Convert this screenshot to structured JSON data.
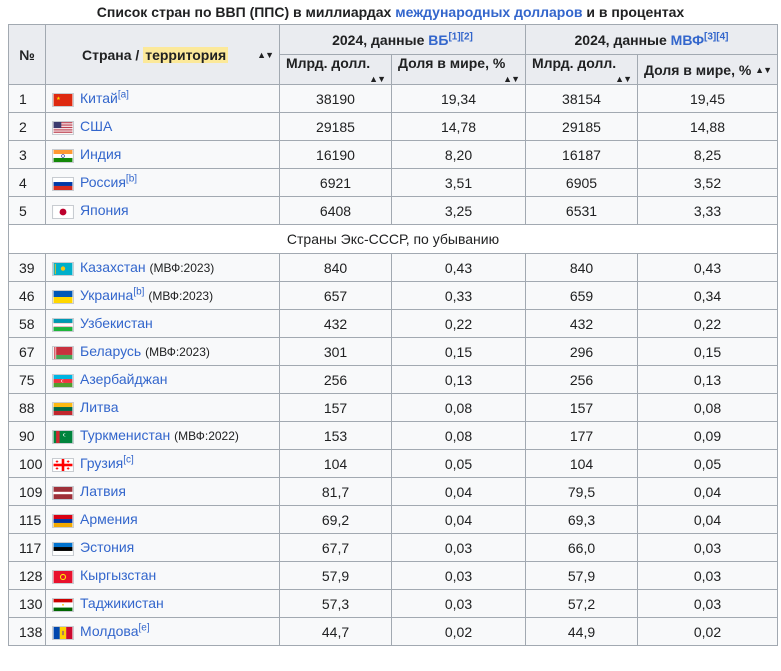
{
  "caption": {
    "part1": "Список стран по ВВП (ППС) в миллиардах ",
    "link": "международных долларов",
    "part2": " и в процентах"
  },
  "headers": {
    "rank": "№",
    "country_prefix": "Страна / ",
    "country_highlight": "территория",
    "wb_prefix": "2024, данные ",
    "wb_link": "ВБ",
    "wb_refs": "[1][2]",
    "imf_prefix": "2024, данные ",
    "imf_link": "МВФ",
    "imf_refs": "[3][4]",
    "gdp": "Млрд. долл.",
    "share": "Доля в мире, %",
    "sort_glyph": "▲▼"
  },
  "separator": "Страны Экс-СССР, по убыванию",
  "top_rows": [
    {
      "rank": "1",
      "flag": "china-flag-icon",
      "name": "Китай",
      "sup": "[a]",
      "note": "",
      "wb_gdp": "38190",
      "wb_share": "19,34",
      "imf_gdp": "38154",
      "imf_share": "19,45"
    },
    {
      "rank": "2",
      "flag": "usa-flag-icon",
      "name": "США",
      "sup": "",
      "note": "",
      "wb_gdp": "29185",
      "wb_share": "14,78",
      "imf_gdp": "29185",
      "imf_share": "14,88"
    },
    {
      "rank": "3",
      "flag": "india-flag-icon",
      "name": "Индия",
      "sup": "",
      "note": "",
      "wb_gdp": "16190",
      "wb_share": "8,20",
      "imf_gdp": "16187",
      "imf_share": "8,25"
    },
    {
      "rank": "4",
      "flag": "russia-flag-icon",
      "name": "Россия",
      "sup": "[b]",
      "note": "",
      "wb_gdp": "6921",
      "wb_share": "3,51",
      "imf_gdp": "6905",
      "imf_share": "3,52"
    },
    {
      "rank": "5",
      "flag": "japan-flag-icon",
      "name": "Япония",
      "sup": "",
      "note": "",
      "wb_gdp": "6408",
      "wb_share": "3,25",
      "imf_gdp": "6531",
      "imf_share": "3,33"
    }
  ],
  "ussr_rows": [
    {
      "rank": "39",
      "flag": "kazakhstan-flag-icon",
      "name": "Казахстан",
      "sup": "",
      "note": "(МВФ:2023)",
      "wb_gdp": "840",
      "wb_share": "0,43",
      "imf_gdp": "840",
      "imf_share": "0,43"
    },
    {
      "rank": "46",
      "flag": "ukraine-flag-icon",
      "name": "Украина",
      "sup": "[b]",
      "note": "(МВФ:2023)",
      "wb_gdp": "657",
      "wb_share": "0,33",
      "imf_gdp": "659",
      "imf_share": "0,34"
    },
    {
      "rank": "58",
      "flag": "uzbekistan-flag-icon",
      "name": "Узбекистан",
      "sup": "",
      "note": "",
      "wb_gdp": "432",
      "wb_share": "0,22",
      "imf_gdp": "432",
      "imf_share": "0,22"
    },
    {
      "rank": "67",
      "flag": "belarus-flag-icon",
      "name": "Беларусь",
      "sup": "",
      "note": "(МВФ:2023)",
      "wb_gdp": "301",
      "wb_share": "0,15",
      "imf_gdp": "296",
      "imf_share": "0,15"
    },
    {
      "rank": "75",
      "flag": "azerbaijan-flag-icon",
      "name": "Азербайджан",
      "sup": "",
      "note": "",
      "wb_gdp": "256",
      "wb_share": "0,13",
      "imf_gdp": "256",
      "imf_share": "0,13"
    },
    {
      "rank": "88",
      "flag": "lithuania-flag-icon",
      "name": "Литва",
      "sup": "",
      "note": "",
      "wb_gdp": "157",
      "wb_share": "0,08",
      "imf_gdp": "157",
      "imf_share": "0,08"
    },
    {
      "rank": "90",
      "flag": "turkmenistan-flag-icon",
      "name": "Туркменистан",
      "sup": "",
      "note": "(МВФ:2022)",
      "wb_gdp": "153",
      "wb_share": "0,08",
      "imf_gdp": "177",
      "imf_share": "0,09"
    },
    {
      "rank": "100",
      "flag": "georgia-flag-icon",
      "name": "Грузия",
      "sup": "[c]",
      "note": "",
      "wb_gdp": "104",
      "wb_share": "0,05",
      "imf_gdp": "104",
      "imf_share": "0,05"
    },
    {
      "rank": "109",
      "flag": "latvia-flag-icon",
      "name": "Латвия",
      "sup": "",
      "note": "",
      "wb_gdp": "81,7",
      "wb_share": "0,04",
      "imf_gdp": "79,5",
      "imf_share": "0,04"
    },
    {
      "rank": "115",
      "flag": "armenia-flag-icon",
      "name": "Армения",
      "sup": "",
      "note": "",
      "wb_gdp": "69,2",
      "wb_share": "0,04",
      "imf_gdp": "69,3",
      "imf_share": "0,04"
    },
    {
      "rank": "117",
      "flag": "estonia-flag-icon",
      "name": "Эстония",
      "sup": "",
      "note": "",
      "wb_gdp": "67,7",
      "wb_share": "0,03",
      "imf_gdp": "66,0",
      "imf_share": "0,03"
    },
    {
      "rank": "128",
      "flag": "kyrgyzstan-flag-icon",
      "name": "Кыргызстан",
      "sup": "",
      "note": "",
      "wb_gdp": "57,9",
      "wb_share": "0,03",
      "imf_gdp": "57,9",
      "imf_share": "0,03"
    },
    {
      "rank": "130",
      "flag": "tajikistan-flag-icon",
      "name": "Таджикистан",
      "sup": "",
      "note": "",
      "wb_gdp": "57,3",
      "wb_share": "0,03",
      "imf_gdp": "57,2",
      "imf_share": "0,03"
    },
    {
      "rank": "138",
      "flag": "moldova-flag-icon",
      "name": "Молдова",
      "sup": "[e]",
      "note": "",
      "wb_gdp": "44,7",
      "wb_share": "0,02",
      "imf_gdp": "44,9",
      "imf_share": "0,02"
    }
  ],
  "colors": {
    "link": "#3366cc",
    "header_bg": "#eaecf0",
    "cell_bg": "#f8f9fa",
    "border": "#a2a9b1",
    "highlight": "#fce99a"
  }
}
